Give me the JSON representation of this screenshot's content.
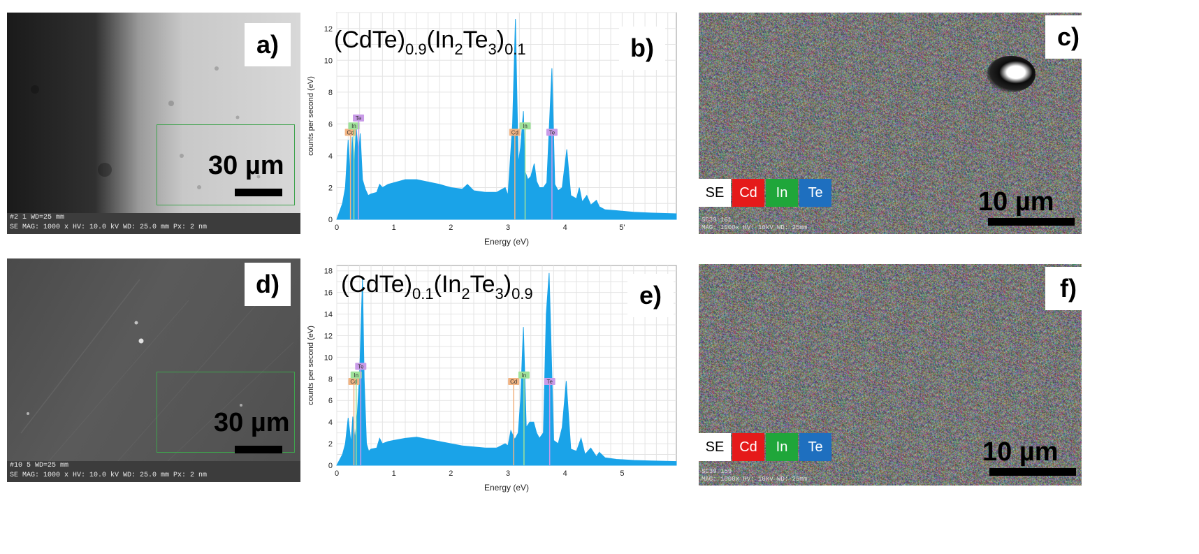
{
  "panels": {
    "a": {
      "label": "a)",
      "scale": "30 µm",
      "databar_line1": "#2 1  WD=25 mm",
      "databar_line2": "SE  MAG: 1000 x   HV: 10.0 kV   WD: 25.0 mm   Px: 2 nm"
    },
    "b": {
      "label": "b)"
    },
    "c": {
      "label": "c)",
      "scale": "10 µm",
      "info_line1": "SC39 161",
      "info_line2": "MAG: 1000x  HV: 10kV  WD: 25mm",
      "legend": [
        "SE",
        "Cd",
        "In",
        "Te"
      ]
    },
    "d": {
      "label": "d)",
      "scale": "30 µm",
      "databar_line1": "#10 5  WD=25 mm",
      "databar_line2": "SE  MAG: 1000 x   HV: 10.0 kV   WD: 25.0 mm   Px: 2 nm"
    },
    "e": {
      "label": "e)"
    },
    "f": {
      "label": "f)",
      "scale": "10 µm",
      "info_line1": "SC39 159",
      "info_line2": "MAG: 1000x  HV: 10kV  WD: 25mm",
      "legend": [
        "SE",
        "Cd",
        "In",
        "Te"
      ]
    }
  },
  "colors": {
    "spectrum": "#1aa3e8",
    "cd_tag": "#f2b483",
    "in_tag": "#9fe29a",
    "te_tag": "#c99be8",
    "legend_se": "#ffffff",
    "legend_cd": "#e51a1a",
    "legend_in": "#1fa63a",
    "legend_te": "#1e6fbf"
  },
  "chart_data": [
    {
      "type": "area",
      "panel": "b",
      "title_parts": [
        "(CdTe)",
        "0.9",
        "(In",
        "2",
        "Te",
        "3",
        ")",
        "0.1"
      ],
      "xlabel": "Energy (eV)",
      "ylabel": "counts per second (eV)",
      "xlim": [
        0,
        5.95
      ],
      "ylim": [
        0,
        13
      ],
      "xticks": [
        "0",
        "1",
        "2",
        "3",
        "4",
        "5'"
      ],
      "yticks": [
        "0",
        "2",
        "4",
        "6",
        "8",
        "10",
        "12"
      ],
      "x": [
        0.0,
        0.1,
        0.15,
        0.2,
        0.24,
        0.27,
        0.3,
        0.34,
        0.38,
        0.41,
        0.45,
        0.5,
        0.55,
        0.6,
        0.7,
        0.75,
        0.8,
        0.9,
        1.0,
        1.2,
        1.4,
        1.6,
        1.8,
        2.0,
        2.2,
        2.29,
        2.4,
        2.6,
        2.8,
        2.95,
        3.0,
        3.08,
        3.13,
        3.18,
        3.22,
        3.27,
        3.3,
        3.35,
        3.4,
        3.46,
        3.5,
        3.55,
        3.62,
        3.68,
        3.77,
        3.82,
        3.88,
        3.95,
        4.03,
        4.1,
        4.2,
        4.25,
        4.3,
        4.38,
        4.45,
        4.55,
        4.6,
        4.7,
        4.9,
        5.2,
        5.5,
        5.95
      ],
      "y": [
        0,
        1.0,
        2.0,
        5.0,
        2.5,
        5.2,
        2.8,
        5.8,
        4.0,
        5.4,
        2.5,
        1.9,
        1.5,
        1.6,
        1.7,
        2.2,
        2.0,
        2.2,
        2.3,
        2.5,
        2.5,
        2.35,
        2.2,
        2.0,
        1.9,
        2.2,
        1.8,
        1.7,
        1.7,
        2.0,
        1.5,
        6.0,
        12.6,
        3.5,
        4.5,
        6.8,
        3.0,
        2.5,
        2.7,
        3.5,
        2.4,
        2.0,
        2.0,
        2.3,
        9.5,
        2.2,
        1.8,
        2.0,
        4.4,
        1.5,
        1.3,
        2.0,
        1.1,
        1.5,
        0.9,
        1.2,
        0.8,
        0.6,
        0.55,
        0.45,
        0.4,
        0.35
      ],
      "peak_tags": [
        {
          "element": "Cd",
          "x": 0.24,
          "y": 5.3
        },
        {
          "element": "In",
          "x": 0.3,
          "y": 5.7
        },
        {
          "element": "Te",
          "x": 0.38,
          "y": 6.2
        },
        {
          "element": "Cd",
          "x": 3.12,
          "y": 5.3
        },
        {
          "element": "In",
          "x": 3.3,
          "y": 5.7
        },
        {
          "element": "Te",
          "x": 3.77,
          "y": 5.3
        }
      ]
    },
    {
      "type": "area",
      "panel": "e",
      "title_parts": [
        "(CdTe)",
        "0.1",
        "(In",
        "2",
        "Te",
        "3",
        ")",
        "0.9"
      ],
      "xlabel": "Energy (eV)",
      "ylabel": "counts per second (eV)",
      "xlim": [
        0,
        5.95
      ],
      "ylim": [
        0,
        18.5
      ],
      "xticks": [
        "0",
        "1",
        "2",
        "3",
        "4",
        "5"
      ],
      "yticks": [
        "0",
        "2",
        "4",
        "6",
        "8",
        "10",
        "12",
        "14",
        "16",
        "18"
      ],
      "x": [
        0.0,
        0.1,
        0.15,
        0.2,
        0.25,
        0.28,
        0.32,
        0.36,
        0.4,
        0.45,
        0.48,
        0.52,
        0.56,
        0.6,
        0.7,
        0.75,
        0.8,
        0.9,
        1.0,
        1.2,
        1.4,
        1.6,
        1.8,
        2.0,
        2.2,
        2.4,
        2.6,
        2.8,
        2.95,
        3.0,
        3.05,
        3.12,
        3.18,
        3.22,
        3.27,
        3.32,
        3.38,
        3.45,
        3.5,
        3.55,
        3.62,
        3.67,
        3.72,
        3.8,
        3.88,
        3.95,
        4.02,
        4.1,
        4.2,
        4.28,
        4.35,
        4.45,
        4.55,
        4.6,
        4.7,
        4.9,
        5.2,
        5.5,
        5.95
      ],
      "y": [
        0,
        1.0,
        2.0,
        4.4,
        2.0,
        4.5,
        2.4,
        4.8,
        8.5,
        17.3,
        8.0,
        2.0,
        1.3,
        1.5,
        1.6,
        2.5,
        2.0,
        2.2,
        2.3,
        2.5,
        2.6,
        2.4,
        2.2,
        2.0,
        1.8,
        1.7,
        1.6,
        1.6,
        2.0,
        1.8,
        3.2,
        2.4,
        3.0,
        6.0,
        12.8,
        3.5,
        4.0,
        4.0,
        3.0,
        2.5,
        3.0,
        14.0,
        17.8,
        2.3,
        2.0,
        3.5,
        7.8,
        1.5,
        1.3,
        2.5,
        1.0,
        1.6,
        0.8,
        1.2,
        0.7,
        0.55,
        0.45,
        0.4,
        0.35
      ],
      "peak_tags": [
        {
          "element": "Cd",
          "x": 0.3,
          "y": 7.5
        },
        {
          "element": "In",
          "x": 0.34,
          "y": 8.1
        },
        {
          "element": "Te",
          "x": 0.42,
          "y": 8.9
        },
        {
          "element": "Cd",
          "x": 3.1,
          "y": 7.5
        },
        {
          "element": "In",
          "x": 3.28,
          "y": 8.1
        },
        {
          "element": "Te",
          "x": 3.73,
          "y": 7.5
        }
      ]
    }
  ]
}
